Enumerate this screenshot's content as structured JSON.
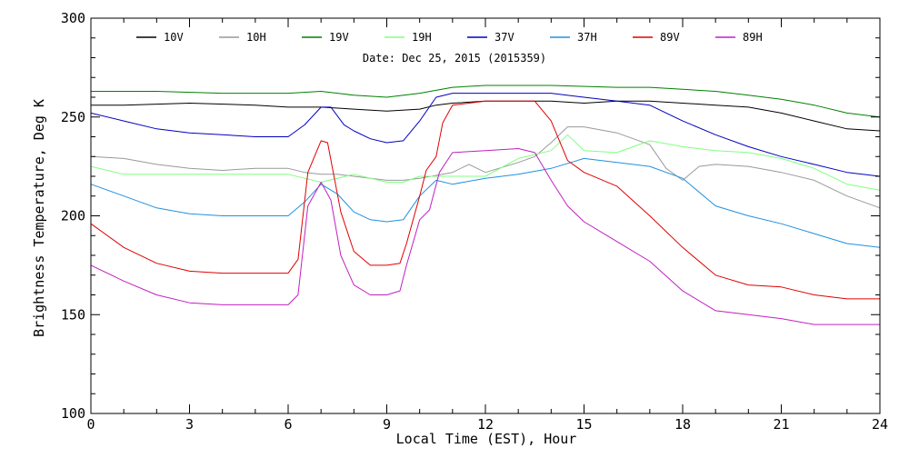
{
  "chart_data": {
    "type": "line",
    "xlabel": "Local Time (EST), Hour",
    "ylabel": "Brightness Temperature, Deg K",
    "annotation": "Date: Dec 25, 2015 (2015359)",
    "xlim": [
      0,
      24
    ],
    "ylim": [
      100,
      300
    ],
    "xticks": [
      0,
      3,
      6,
      9,
      12,
      15,
      18,
      21,
      24
    ],
    "yticks": [
      100,
      150,
      200,
      250,
      300
    ],
    "grid": false,
    "legend_position": "top",
    "series": [
      {
        "name": "10V",
        "color": "#000000",
        "points": [
          [
            0,
            256
          ],
          [
            1,
            256
          ],
          [
            3,
            257
          ],
          [
            5,
            256
          ],
          [
            6,
            255
          ],
          [
            7,
            255
          ],
          [
            8,
            254
          ],
          [
            9,
            253
          ],
          [
            10,
            254
          ],
          [
            10.5,
            256
          ],
          [
            11,
            257
          ],
          [
            12,
            258
          ],
          [
            13,
            258
          ],
          [
            14,
            258
          ],
          [
            15,
            257
          ],
          [
            16,
            258
          ],
          [
            17,
            258
          ],
          [
            18,
            257
          ],
          [
            19,
            256
          ],
          [
            20,
            255
          ],
          [
            21,
            252
          ],
          [
            22,
            248
          ],
          [
            23,
            244
          ],
          [
            24,
            243
          ]
        ]
      },
      {
        "name": "10H",
        "color": "#999999",
        "points": [
          [
            0,
            230
          ],
          [
            1,
            229
          ],
          [
            2,
            226
          ],
          [
            3,
            224
          ],
          [
            4,
            223
          ],
          [
            5,
            224
          ],
          [
            6,
            224
          ],
          [
            6.5,
            222
          ],
          [
            7,
            221
          ],
          [
            7.5,
            221
          ],
          [
            8,
            220
          ],
          [
            9,
            218
          ],
          [
            9.5,
            218
          ],
          [
            10,
            219
          ],
          [
            11,
            222
          ],
          [
            11.5,
            226
          ],
          [
            12,
            222
          ],
          [
            13,
            227
          ],
          [
            13.5,
            230
          ],
          [
            14,
            237
          ],
          [
            14.5,
            245
          ],
          [
            15,
            245
          ],
          [
            16,
            242
          ],
          [
            17,
            236
          ],
          [
            17.5,
            224
          ],
          [
            18,
            218
          ],
          [
            18.5,
            225
          ],
          [
            19,
            226
          ],
          [
            20,
            225
          ],
          [
            21,
            222
          ],
          [
            22,
            218
          ],
          [
            23,
            210
          ],
          [
            24,
            204
          ]
        ]
      },
      {
        "name": "19V",
        "color": "#008000",
        "points": [
          [
            0,
            263
          ],
          [
            2,
            263
          ],
          [
            4,
            262
          ],
          [
            6,
            262
          ],
          [
            7,
            263
          ],
          [
            8,
            261
          ],
          [
            9,
            260
          ],
          [
            10,
            262
          ],
          [
            11,
            265
          ],
          [
            12,
            266
          ],
          [
            14,
            266
          ],
          [
            16,
            265
          ],
          [
            17,
            265
          ],
          [
            18,
            264
          ],
          [
            19,
            263
          ],
          [
            20,
            261
          ],
          [
            21,
            259
          ],
          [
            22,
            256
          ],
          [
            23,
            252
          ],
          [
            24,
            250
          ]
        ]
      },
      {
        "name": "19H",
        "color": "#80ff80",
        "points": [
          [
            0,
            225
          ],
          [
            1,
            221
          ],
          [
            2,
            221
          ],
          [
            4,
            221
          ],
          [
            6,
            221
          ],
          [
            6.5,
            219
          ],
          [
            7,
            217
          ],
          [
            8,
            221
          ],
          [
            9,
            217
          ],
          [
            9.5,
            217
          ],
          [
            10,
            220
          ],
          [
            11,
            220
          ],
          [
            12,
            220
          ],
          [
            13,
            229
          ],
          [
            14,
            233
          ],
          [
            14.5,
            241
          ],
          [
            15,
            233
          ],
          [
            16,
            232
          ],
          [
            17,
            238
          ],
          [
            18,
            235
          ],
          [
            19,
            233
          ],
          [
            20,
            232
          ],
          [
            21,
            229
          ],
          [
            22,
            224
          ],
          [
            23,
            216
          ],
          [
            24,
            213
          ]
        ]
      },
      {
        "name": "37V",
        "color": "#0000c0",
        "points": [
          [
            0,
            252
          ],
          [
            1,
            248
          ],
          [
            2,
            244
          ],
          [
            3,
            242
          ],
          [
            4,
            241
          ],
          [
            5,
            240
          ],
          [
            6,
            240
          ],
          [
            6.5,
            246
          ],
          [
            7,
            255
          ],
          [
            7.3,
            255
          ],
          [
            7.7,
            246
          ],
          [
            8,
            243
          ],
          [
            8.5,
            239
          ],
          [
            9,
            237
          ],
          [
            9.5,
            238
          ],
          [
            10,
            248
          ],
          [
            10.5,
            260
          ],
          [
            11,
            262
          ],
          [
            12,
            262
          ],
          [
            13,
            262
          ],
          [
            14,
            262
          ],
          [
            15,
            260
          ],
          [
            16,
            258
          ],
          [
            17,
            256
          ],
          [
            18,
            248
          ],
          [
            19,
            241
          ],
          [
            20,
            235
          ],
          [
            21,
            230
          ],
          [
            22,
            226
          ],
          [
            23,
            222
          ],
          [
            24,
            220
          ]
        ]
      },
      {
        "name": "37H",
        "color": "#2090e0",
        "points": [
          [
            0,
            216
          ],
          [
            1,
            210
          ],
          [
            2,
            204
          ],
          [
            3,
            201
          ],
          [
            4,
            200
          ],
          [
            5,
            200
          ],
          [
            6,
            200
          ],
          [
            6.5,
            207
          ],
          [
            7,
            216
          ],
          [
            7.5,
            211
          ],
          [
            8,
            202
          ],
          [
            8.5,
            198
          ],
          [
            9,
            197
          ],
          [
            9.5,
            198
          ],
          [
            10,
            210
          ],
          [
            10.5,
            218
          ],
          [
            11,
            216
          ],
          [
            12,
            219
          ],
          [
            13,
            221
          ],
          [
            14,
            224
          ],
          [
            15,
            229
          ],
          [
            16,
            227
          ],
          [
            17,
            225
          ],
          [
            18,
            219
          ],
          [
            19,
            205
          ],
          [
            20,
            200
          ],
          [
            21,
            196
          ],
          [
            22,
            191
          ],
          [
            23,
            186
          ],
          [
            24,
            184
          ]
        ]
      },
      {
        "name": "89V",
        "color": "#e00000",
        "points": [
          [
            0,
            196
          ],
          [
            1,
            184
          ],
          [
            2,
            176
          ],
          [
            3,
            172
          ],
          [
            4,
            171
          ],
          [
            5,
            171
          ],
          [
            6,
            171
          ],
          [
            6.3,
            178
          ],
          [
            6.6,
            222
          ],
          [
            7,
            238
          ],
          [
            7.2,
            237
          ],
          [
            7.6,
            202
          ],
          [
            8,
            182
          ],
          [
            8.5,
            175
          ],
          [
            9,
            175
          ],
          [
            9.4,
            176
          ],
          [
            9.6,
            186
          ],
          [
            10,
            210
          ],
          [
            10.2,
            223
          ],
          [
            10.5,
            230
          ],
          [
            10.7,
            247
          ],
          [
            11,
            256
          ],
          [
            12,
            258
          ],
          [
            13,
            258
          ],
          [
            13.5,
            258
          ],
          [
            14,
            248
          ],
          [
            14.5,
            228
          ],
          [
            15,
            222
          ],
          [
            16,
            215
          ],
          [
            17,
            200
          ],
          [
            18,
            184
          ],
          [
            19,
            170
          ],
          [
            20,
            165
          ],
          [
            21,
            164
          ],
          [
            22,
            160
          ],
          [
            23,
            158
          ],
          [
            24,
            158
          ]
        ]
      },
      {
        "name": "89H",
        "color": "#c020c0",
        "points": [
          [
            0,
            175
          ],
          [
            1,
            167
          ],
          [
            2,
            160
          ],
          [
            3,
            156
          ],
          [
            4,
            155
          ],
          [
            5,
            155
          ],
          [
            6,
            155
          ],
          [
            6.3,
            160
          ],
          [
            6.6,
            205
          ],
          [
            7,
            217
          ],
          [
            7.3,
            208
          ],
          [
            7.6,
            180
          ],
          [
            8,
            165
          ],
          [
            8.5,
            160
          ],
          [
            9,
            160
          ],
          [
            9.4,
            162
          ],
          [
            9.6,
            175
          ],
          [
            10,
            198
          ],
          [
            10.3,
            203
          ],
          [
            10.6,
            222
          ],
          [
            11,
            232
          ],
          [
            12,
            233
          ],
          [
            13,
            234
          ],
          [
            13.5,
            232
          ],
          [
            14,
            218
          ],
          [
            14.5,
            205
          ],
          [
            15,
            197
          ],
          [
            16,
            187
          ],
          [
            17,
            177
          ],
          [
            18,
            162
          ],
          [
            19,
            152
          ],
          [
            20,
            150
          ],
          [
            21,
            148
          ],
          [
            22,
            145
          ],
          [
            23,
            145
          ],
          [
            24,
            145
          ]
        ]
      }
    ]
  }
}
